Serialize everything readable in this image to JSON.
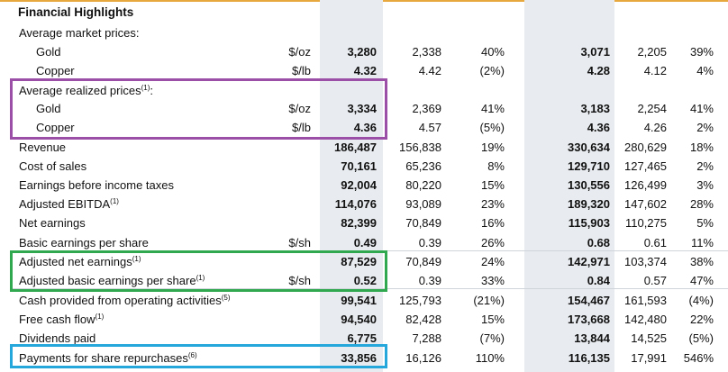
{
  "title": "Financial Highlights",
  "rows": [
    {
      "label": "Average market prices:",
      "sup": "",
      "unit": "",
      "values": [
        "",
        "",
        "",
        "",
        "",
        ""
      ]
    },
    {
      "label": "Gold",
      "sup": "",
      "unit": "$/oz",
      "values": [
        "3,280",
        "2,338",
        "40%",
        "3,071",
        "2,205",
        "39%"
      ]
    },
    {
      "label": "Copper",
      "sup": "",
      "unit": "$/lb",
      "values": [
        "4.32",
        "4.42",
        "(2%)",
        "4.28",
        "4.12",
        "4%"
      ]
    },
    {
      "label": "Average realized prices",
      "sup": "(1)",
      "unit": "",
      "suffix": ":",
      "values": [
        "",
        "",
        "",
        "",
        "",
        ""
      ]
    },
    {
      "label": "Gold",
      "sup": "",
      "unit": "$/oz",
      "values": [
        "3,334",
        "2,369",
        "41%",
        "3,183",
        "2,254",
        "41%"
      ]
    },
    {
      "label": "Copper",
      "sup": "",
      "unit": "$/lb",
      "values": [
        "4.36",
        "4.57",
        "(5%)",
        "4.36",
        "4.26",
        "2%"
      ]
    },
    {
      "label": "Revenue",
      "sup": "",
      "unit": "",
      "values": [
        "186,487",
        "156,838",
        "19%",
        "330,634",
        "280,629",
        "18%"
      ]
    },
    {
      "label": "Cost of sales",
      "sup": "",
      "unit": "",
      "values": [
        "70,161",
        "65,236",
        "8%",
        "129,710",
        "127,465",
        "2%"
      ]
    },
    {
      "label": "Earnings before income taxes",
      "sup": "",
      "unit": "",
      "values": [
        "92,004",
        "80,220",
        "15%",
        "130,556",
        "126,499",
        "3%"
      ]
    },
    {
      "label": "Adjusted EBITDA",
      "sup": "(1)",
      "unit": "",
      "values": [
        "114,076",
        "93,089",
        "23%",
        "189,320",
        "147,602",
        "28%"
      ]
    },
    {
      "label": "Net earnings",
      "sup": "",
      "unit": "",
      "values": [
        "82,399",
        "70,849",
        "16%",
        "115,903",
        "110,275",
        "5%"
      ]
    },
    {
      "label": "Basic earnings per share",
      "sup": "",
      "unit": "$/sh",
      "values": [
        "0.49",
        "0.39",
        "26%",
        "0.68",
        "0.61",
        "11%"
      ]
    },
    {
      "label": "Adjusted net earnings",
      "sup": "(1)",
      "unit": "",
      "values": [
        "87,529",
        "70,849",
        "24%",
        "142,971",
        "103,374",
        "38%"
      ]
    },
    {
      "label": "Adjusted basic earnings per share",
      "sup": "(1)",
      "unit": "$/sh",
      "values": [
        "0.52",
        "0.39",
        "33%",
        "0.84",
        "0.57",
        "47%"
      ]
    },
    {
      "label": "Cash provided from operating activities",
      "sup": "(5)",
      "unit": "",
      "values": [
        "99,541",
        "125,793",
        "(21%)",
        "154,467",
        "161,593",
        "(4%)"
      ]
    },
    {
      "label": "Free cash flow",
      "sup": "(1)",
      "unit": "",
      "values": [
        "94,540",
        "82,428",
        "15%",
        "173,668",
        "142,480",
        "22%"
      ]
    },
    {
      "label": "Dividends paid",
      "sup": "",
      "unit": "",
      "values": [
        "6,775",
        "7,288",
        "(7%)",
        "13,844",
        "14,525",
        "(5%)"
      ]
    },
    {
      "label": "Payments for share repurchases",
      "sup": "(6)",
      "unit": "",
      "values": [
        "33,856",
        "16,126",
        "110%",
        "116,135",
        "17,991",
        "546%"
      ]
    }
  ],
  "highlights": [
    {
      "name": "purple",
      "color": "#9b4fa6",
      "rows": [
        3,
        4,
        5
      ]
    },
    {
      "name": "green",
      "color": "#2fa84f",
      "rows": [
        12,
        13
      ]
    },
    {
      "name": "blue",
      "color": "#25a7dc",
      "rows": [
        17
      ]
    }
  ],
  "colors": {
    "rule": "#e7a93d",
    "shade": "#e8ebef"
  }
}
